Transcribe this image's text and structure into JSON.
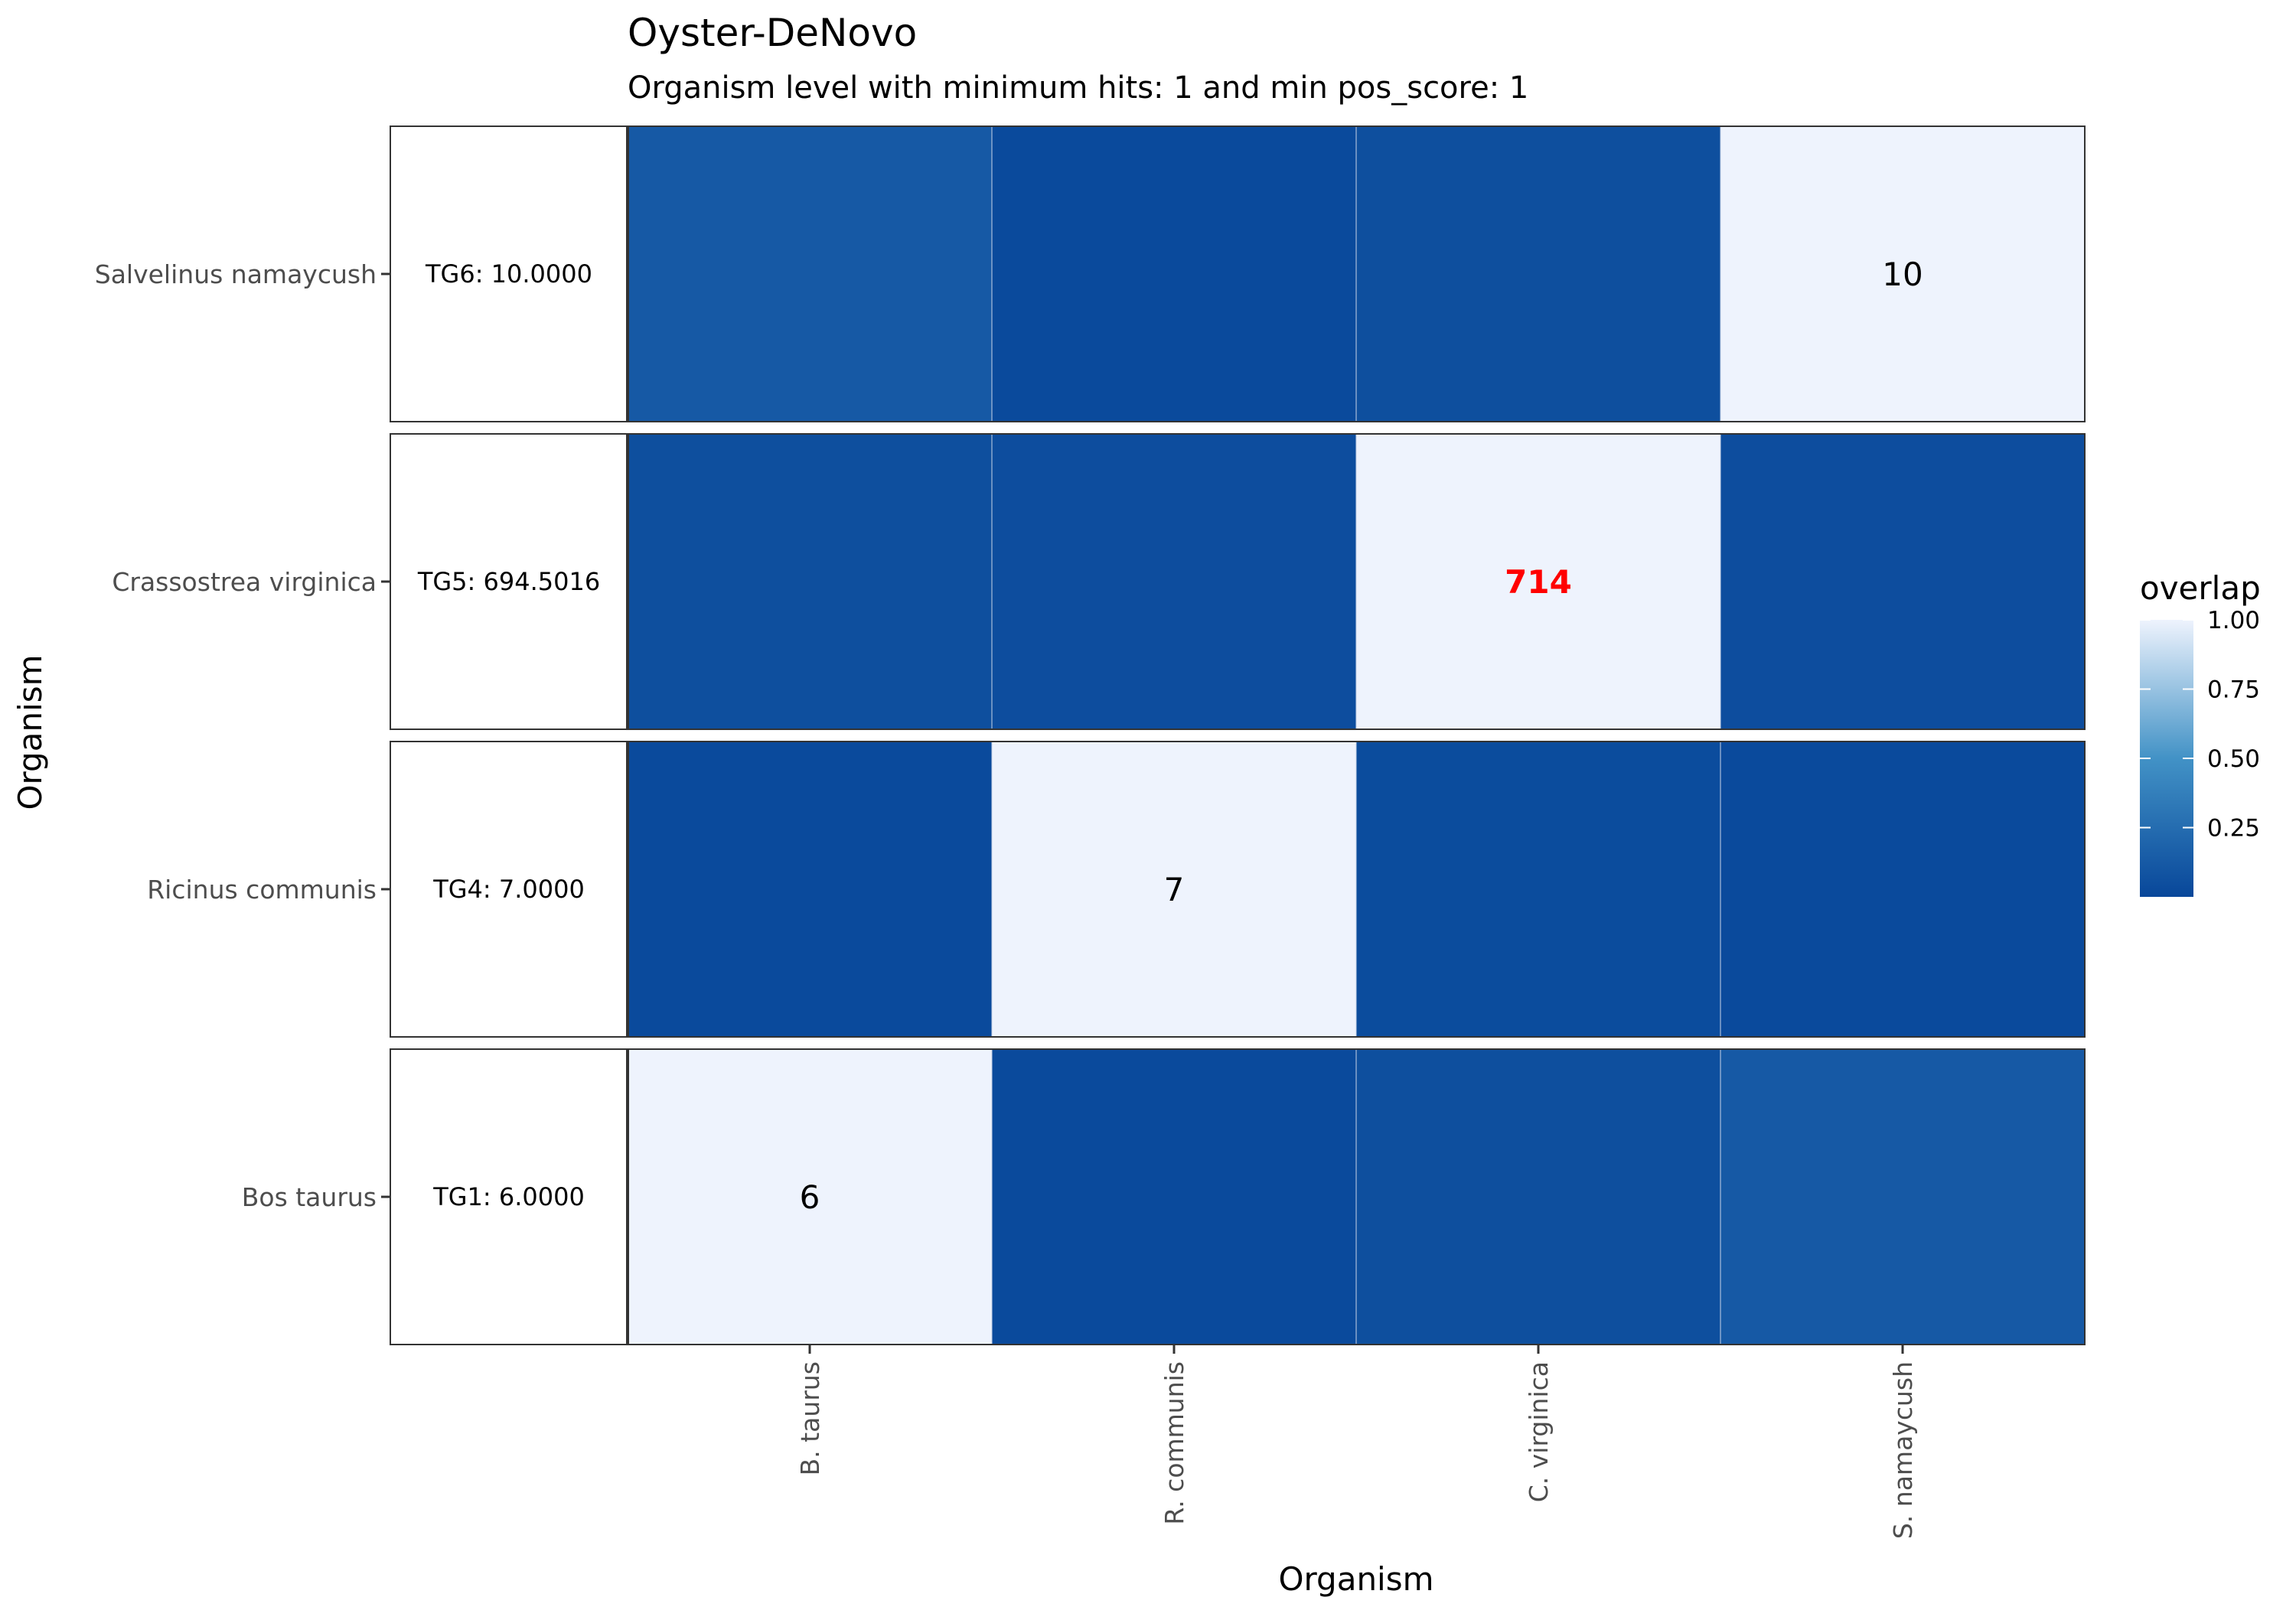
{
  "chart_data": {
    "type": "heatmap",
    "title": "Oyster-DeNovo",
    "subtitle": "Organism level with minimum hits: 1 and min pos_score: 1",
    "xlabel": "Organism",
    "ylabel": "Organism",
    "x_categories": [
      "B. taurus",
      "R. communis",
      "C. virginica",
      "S. namaycush"
    ],
    "rows": [
      {
        "label": "Salvelinus namaycush",
        "side_label": "TG6:  10.0000",
        "overlap": [
          0.12,
          0.02,
          0.05,
          1.0
        ],
        "cell_labels": [
          "",
          "",
          "",
          "10"
        ]
      },
      {
        "label": "Crassostrea virginica",
        "side_label": "TG5: 694.5016",
        "overlap": [
          0.05,
          0.04,
          1.0,
          0.04
        ],
        "cell_labels": [
          "",
          "",
          "714",
          ""
        ]
      },
      {
        "label": "Ricinus communis",
        "side_label": "TG4:   7.0000",
        "overlap": [
          0.02,
          1.0,
          0.03,
          0.02
        ],
        "cell_labels": [
          "",
          "7",
          "",
          ""
        ]
      },
      {
        "label": "Bos taurus",
        "side_label": "TG1:   6.0000",
        "overlap": [
          1.0,
          0.02,
          0.05,
          0.12
        ],
        "cell_labels": [
          "6",
          "",
          "",
          ""
        ]
      }
    ],
    "highlight_color": "#ff0000",
    "legend": {
      "title": "overlap",
      "ticks": [
        "1.00",
        "0.75",
        "0.50",
        "0.25"
      ],
      "tick_values": [
        1.0,
        0.75,
        0.5,
        0.25
      ],
      "range": [
        0.0,
        1.0
      ],
      "placement": "right"
    },
    "colors": {
      "low": "#08479a",
      "mid": "#4292c6",
      "high": "#eef3fd"
    }
  }
}
